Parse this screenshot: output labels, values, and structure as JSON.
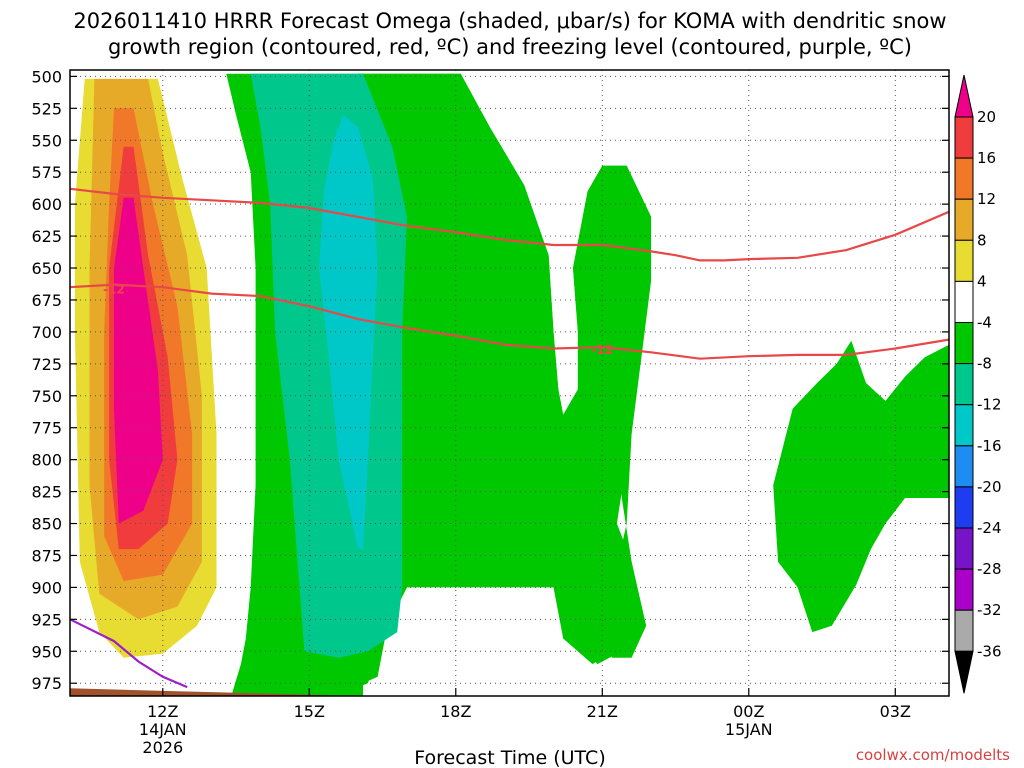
{
  "chart_data": {
    "type": "heatmap",
    "title_line1": "2026011410 HRRR Forecast Omega (shaded, μbar/s) for KOMA with dendritic snow",
    "title_line2": "growth region (contoured, red, ºC) and freezing level (contoured, purple, ºC)",
    "xlabel": "Forecast Time (UTC)",
    "ylabel": "",
    "credit": "coolwx.com/modelts",
    "xlim": [
      10.1,
      28.1
    ],
    "ylim": [
      985,
      495
    ],
    "y_ticks": [
      "500",
      "525",
      "550",
      "575",
      "600",
      "625",
      "650",
      "675",
      "700",
      "725",
      "750",
      "775",
      "800",
      "825",
      "850",
      "875",
      "900",
      "925",
      "950",
      "975"
    ],
    "x_ticks": [
      {
        "t": 12,
        "label": "12Z",
        "sub1": "14JAN",
        "sub2": "2026"
      },
      {
        "t": 15,
        "label": "15Z",
        "sub1": "",
        "sub2": ""
      },
      {
        "t": 18,
        "label": "18Z",
        "sub1": "",
        "sub2": ""
      },
      {
        "t": 21,
        "label": "21Z",
        "sub1": "",
        "sub2": ""
      },
      {
        "t": 24,
        "label": "00Z",
        "sub1": "15JAN",
        "sub2": ""
      },
      {
        "t": 27,
        "label": "03Z",
        "sub1": "",
        "sub2": ""
      }
    ],
    "colorbar": {
      "labels": [
        "20",
        "16",
        "12",
        "8",
        "4",
        "-4",
        "-8",
        "-12",
        "-16",
        "-20",
        "-24",
        "-28",
        "-32",
        "-36"
      ],
      "colors": [
        "#ee0088",
        "#f03c3c",
        "#f07828",
        "#e6aa28",
        "#e8dc32",
        "#ffffff",
        "#00c800",
        "#00c88c",
        "#00c8c8",
        "#1e8cf0",
        "#1e3cf0",
        "#7814c8",
        "#aa00c8",
        "#aaaaaa",
        "#000000"
      ]
    },
    "shading": [
      {
        "name": "omega-positive-4",
        "color": "#e8dc32",
        "points": [
          [
            10.4,
            502
          ],
          [
            11.9,
            502
          ],
          [
            12.4,
            580
          ],
          [
            12.9,
            650
          ],
          [
            13.1,
            780
          ],
          [
            13.1,
            900
          ],
          [
            12.7,
            930
          ],
          [
            12.0,
            952
          ],
          [
            11.2,
            955
          ],
          [
            10.7,
            935
          ],
          [
            10.3,
            880
          ],
          [
            10.2,
            700
          ],
          [
            10.2,
            600
          ]
        ]
      },
      {
        "name": "omega-positive-8",
        "color": "#e6aa28",
        "points": [
          [
            10.6,
            502
          ],
          [
            11.7,
            502
          ],
          [
            12.0,
            560
          ],
          [
            12.5,
            640
          ],
          [
            12.8,
            750
          ],
          [
            12.8,
            880
          ],
          [
            12.3,
            915
          ],
          [
            11.5,
            925
          ],
          [
            10.7,
            905
          ],
          [
            10.5,
            820
          ],
          [
            10.5,
            650
          ]
        ]
      },
      {
        "name": "omega-positive-12",
        "color": "#f07828",
        "points": [
          [
            11.0,
            525
          ],
          [
            11.4,
            525
          ],
          [
            11.8,
            600
          ],
          [
            12.3,
            680
          ],
          [
            12.6,
            780
          ],
          [
            12.6,
            850
          ],
          [
            12.0,
            890
          ],
          [
            11.2,
            895
          ],
          [
            10.8,
            860
          ],
          [
            10.8,
            700
          ],
          [
            10.9,
            600
          ]
        ]
      },
      {
        "name": "omega-positive-16",
        "color": "#f03c3c",
        "points": [
          [
            11.2,
            555
          ],
          [
            11.4,
            555
          ],
          [
            11.7,
            640
          ],
          [
            12.1,
            720
          ],
          [
            12.3,
            800
          ],
          [
            12.1,
            850
          ],
          [
            11.5,
            870
          ],
          [
            11.1,
            870
          ],
          [
            10.9,
            800
          ],
          [
            10.9,
            650
          ]
        ]
      },
      {
        "name": "omega-positive-20",
        "color": "#ee0088",
        "points": [
          [
            11.2,
            595
          ],
          [
            11.4,
            595
          ],
          [
            11.6,
            650
          ],
          [
            11.9,
            730
          ],
          [
            12.0,
            800
          ],
          [
            11.6,
            840
          ],
          [
            11.1,
            850
          ],
          [
            11.0,
            760
          ],
          [
            11.0,
            650
          ]
        ]
      },
      {
        "name": "omega-negative-4-main",
        "color": "#00c800",
        "points": [
          [
            13.3,
            498
          ],
          [
            16.1,
            498
          ],
          [
            16.1,
            998
          ],
          [
            13.3,
            998
          ],
          [
            13.6,
            960
          ],
          [
            13.7,
            940
          ],
          [
            13.8,
            900
          ],
          [
            13.9,
            820
          ],
          [
            13.9,
            650
          ],
          [
            13.8,
            575
          ],
          [
            13.5,
            530
          ]
        ]
      },
      {
        "name": "omega-negative-4-upper",
        "color": "#00c800",
        "points": [
          [
            16.0,
            498
          ],
          [
            18.1,
            498
          ],
          [
            18.7,
            540
          ],
          [
            19.4,
            585
          ],
          [
            19.9,
            640
          ],
          [
            20.0,
            700
          ],
          [
            20.1,
            745
          ],
          [
            20.2,
            765
          ],
          [
            20.5,
            745
          ],
          [
            20.5,
            700
          ],
          [
            20.4,
            650
          ],
          [
            20.7,
            590
          ],
          [
            21.0,
            570
          ],
          [
            21.5,
            570
          ],
          [
            22.0,
            610
          ],
          [
            22.0,
            660
          ],
          [
            21.8,
            720
          ],
          [
            21.6,
            780
          ],
          [
            21.5,
            850
          ],
          [
            21.2,
            900
          ],
          [
            21.1,
            940
          ],
          [
            21.2,
            955
          ],
          [
            21.6,
            955
          ],
          [
            21.9,
            930
          ],
          [
            21.6,
            880
          ],
          [
            21.4,
            830
          ],
          [
            21.3,
            790
          ],
          [
            21.2,
            750
          ],
          [
            21.0,
            870
          ],
          [
            21.3,
            905
          ],
          [
            21.5,
            935
          ],
          [
            21.2,
            950
          ],
          [
            20.8,
            960
          ],
          [
            20.2,
            940
          ],
          [
            20.0,
            900
          ],
          [
            18.0,
            900
          ],
          [
            17.0,
            900
          ],
          [
            16.6,
            930
          ],
          [
            16.4,
            970
          ],
          [
            16.1,
            975
          ]
        ]
      },
      {
        "name": "omega-negative-4-wide",
        "color": "#00c800",
        "points": [
          [
            16.0,
            498
          ],
          [
            18.1,
            498
          ],
          [
            18.7,
            540
          ],
          [
            19.4,
            585
          ],
          [
            19.9,
            640
          ],
          [
            20.0,
            700
          ],
          [
            20.1,
            745
          ],
          [
            20.2,
            765
          ],
          [
            20.5,
            745
          ],
          [
            20.5,
            700
          ],
          [
            20.4,
            650
          ],
          [
            20.7,
            590
          ],
          [
            21.0,
            570
          ],
          [
            21.5,
            570
          ],
          [
            22.0,
            610
          ],
          [
            21.8,
            700
          ],
          [
            21.5,
            800
          ],
          [
            21.3,
            850
          ],
          [
            21.6,
            880
          ],
          [
            21.8,
            915
          ],
          [
            21.4,
            950
          ],
          [
            20.9,
            960
          ],
          [
            20.3,
            935
          ],
          [
            20.0,
            898
          ],
          [
            17.0,
            898
          ],
          [
            16.6,
            930
          ],
          [
            16.2,
            975
          ],
          [
            16.0,
            978
          ]
        ]
      },
      {
        "name": "omega-negative-4-late",
        "color": "#00c800",
        "points": [
          [
            24.9,
            760
          ],
          [
            25.4,
            740
          ],
          [
            25.8,
            725
          ],
          [
            26.1,
            707
          ],
          [
            26.4,
            740
          ],
          [
            26.8,
            754
          ],
          [
            27.2,
            735
          ],
          [
            27.6,
            720
          ],
          [
            28.1,
            710
          ],
          [
            28.1,
            830
          ],
          [
            27.2,
            830
          ],
          [
            26.8,
            850
          ],
          [
            26.5,
            870
          ],
          [
            26.2,
            898
          ],
          [
            25.7,
            930
          ],
          [
            25.3,
            935
          ],
          [
            25.0,
            900
          ],
          [
            24.6,
            880
          ],
          [
            24.5,
            820
          ]
        ]
      },
      {
        "name": "omega-negative-8",
        "color": "#00c88c",
        "points": [
          [
            13.8,
            498
          ],
          [
            16.1,
            498
          ],
          [
            16.7,
            555
          ],
          [
            17.0,
            610
          ],
          [
            16.9,
            700
          ],
          [
            16.9,
            800
          ],
          [
            16.9,
            900
          ],
          [
            16.8,
            935
          ],
          [
            16.2,
            950
          ],
          [
            15.6,
            955
          ],
          [
            14.9,
            950
          ],
          [
            14.8,
            900
          ],
          [
            14.6,
            800
          ],
          [
            14.3,
            700
          ],
          [
            14.2,
            600
          ],
          [
            14.0,
            540
          ]
        ]
      },
      {
        "name": "omega-negative-12",
        "color": "#00c8c8",
        "points": [
          [
            15.7,
            530
          ],
          [
            16.0,
            540
          ],
          [
            16.3,
            580
          ],
          [
            16.4,
            650
          ],
          [
            16.3,
            720
          ],
          [
            16.2,
            800
          ],
          [
            16.1,
            870
          ],
          [
            16.0,
            870
          ],
          [
            15.6,
            800
          ],
          [
            15.4,
            720
          ],
          [
            15.2,
            650
          ],
          [
            15.3,
            590
          ],
          [
            15.5,
            550
          ]
        ]
      }
    ],
    "contours": [
      {
        "name": "dendritic-upper-contour",
        "color": "#e84848",
        "label": "",
        "points": [
          [
            10.1,
            588
          ],
          [
            11,
            592
          ],
          [
            12,
            595
          ],
          [
            13,
            597
          ],
          [
            14,
            599
          ],
          [
            15,
            603
          ],
          [
            16,
            610
          ],
          [
            17,
            617
          ],
          [
            18,
            622
          ],
          [
            19,
            628
          ],
          [
            20,
            632
          ],
          [
            21,
            632
          ],
          [
            22,
            637
          ],
          [
            22.5,
            640
          ],
          [
            23,
            644
          ],
          [
            23.5,
            644
          ],
          [
            24,
            643
          ],
          [
            25,
            642
          ],
          [
            26,
            636
          ],
          [
            27,
            624
          ],
          [
            28.1,
            606
          ]
        ]
      },
      {
        "name": "dendritic-lower-contour",
        "color": "#e84848",
        "label": "-12",
        "label_t": 11.0,
        "label_p": 667,
        "points": [
          [
            10.1,
            665
          ],
          [
            11,
            663
          ],
          [
            12,
            665
          ],
          [
            13,
            670
          ],
          [
            14,
            672
          ],
          [
            15,
            680
          ],
          [
            16,
            690
          ],
          [
            17,
            697
          ],
          [
            18,
            703
          ],
          [
            19,
            710
          ],
          [
            20,
            713
          ],
          [
            21,
            712
          ],
          [
            22,
            716
          ],
          [
            23,
            721
          ],
          [
            24,
            719
          ],
          [
            25,
            718
          ],
          [
            26,
            718
          ],
          [
            27,
            713
          ],
          [
            28.1,
            706
          ]
        ]
      },
      {
        "name": "freezing-level-contour",
        "color": "#9d1fc8",
        "label": "",
        "points": [
          [
            10.1,
            925
          ],
          [
            11,
            942
          ],
          [
            11.5,
            958
          ],
          [
            12,
            970
          ],
          [
            12.5,
            978
          ]
        ]
      }
    ],
    "lower_label": {
      "text": "-12",
      "t": 21.0,
      "p": 714
    },
    "ground": {
      "color": "#a0522d",
      "points": [
        [
          10.1,
          979
        ],
        [
          12,
          981
        ],
        [
          14,
          983
        ],
        [
          16,
          985
        ],
        [
          18,
          987
        ],
        [
          20,
          989
        ],
        [
          22,
          990
        ],
        [
          24,
          990
        ],
        [
          26,
          990
        ],
        [
          28.1,
          990
        ],
        [
          28.1,
          998
        ],
        [
          10.1,
          998
        ]
      ]
    }
  }
}
